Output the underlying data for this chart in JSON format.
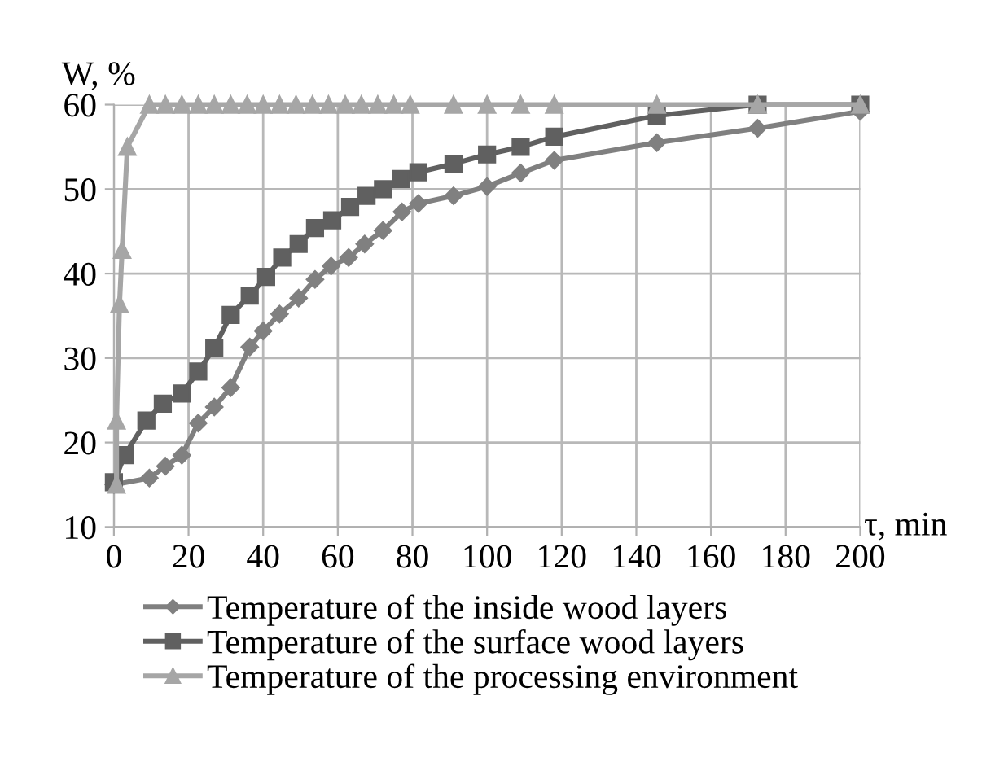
{
  "chart_data": {
    "type": "line",
    "xlabel": "τ, min",
    "ylabel": "W, %",
    "xlim": [
      0,
      200
    ],
    "xticks": [
      0,
      20,
      40,
      60,
      80,
      100,
      120,
      140,
      160,
      180,
      200
    ],
    "ylim": [
      10,
      60
    ],
    "yticks": [
      10,
      20,
      30,
      40,
      50,
      60
    ],
    "grid": true,
    "legend": "bottom",
    "line_style": "solid",
    "series": [
      {
        "name": "Temperature of the inside wood layers",
        "color": "#808080",
        "marker": "diamond",
        "x": [
          0,
          9.5,
          13.8,
          18.2,
          22.6,
          26.9,
          31.3,
          36.4,
          40,
          44.4,
          49.5,
          53.9,
          58.2,
          62.9,
          67.2,
          72.1,
          77.2,
          81.6,
          91,
          100,
          109,
          118,
          145.5,
          172.5,
          200
        ],
        "values": [
          15,
          15.8,
          17.2,
          18.5,
          22.3,
          24.2,
          26.5,
          31.3,
          33.2,
          35.2,
          37.1,
          39.3,
          40.9,
          41.9,
          43.5,
          45.1,
          47.3,
          48.3,
          49.2,
          50.3,
          51.9,
          53.4,
          55.5,
          57.2,
          59.2
        ]
      },
      {
        "name": "Temperature of the surface wood layers",
        "color": "#606060",
        "marker": "square",
        "x": [
          0,
          2.9,
          8.7,
          13.1,
          18.2,
          22.6,
          26.9,
          31.3,
          36.4,
          40.8,
          45.1,
          49.5,
          53.9,
          58.5,
          63.3,
          67.7,
          72.1,
          76.9,
          81.6,
          91,
          100,
          109,
          118,
          145.5,
          172.5,
          200
        ],
        "values": [
          15.3,
          18.5,
          22.6,
          24.6,
          25.8,
          28.4,
          31.2,
          35.1,
          37.4,
          39.6,
          41.9,
          43.5,
          45.4,
          46.3,
          47.9,
          49.2,
          50,
          51.2,
          52,
          53,
          54.1,
          55,
          56.2,
          58.7,
          60,
          60
        ]
      },
      {
        "name": "Temperature of the processing environment",
        "color": "#a6a6a6",
        "marker": "triangle",
        "x": [
          0.7,
          0.7,
          1.5,
          2.2,
          3.6,
          9.5,
          13.8,
          18.2,
          22.6,
          26.9,
          31.3,
          35.7,
          40,
          44.4,
          48.8,
          53.2,
          57.5,
          62,
          66.3,
          70.7,
          75,
          79.4,
          91,
          100,
          109,
          118,
          145.5,
          172.5,
          200
        ],
        "values": [
          15,
          22.6,
          36.4,
          42.8,
          55,
          60,
          60,
          60,
          60,
          60,
          60,
          60,
          60,
          60,
          60,
          60,
          60,
          60,
          60,
          60,
          60,
          60,
          60,
          60,
          60,
          60,
          60,
          60,
          60
        ]
      }
    ]
  }
}
